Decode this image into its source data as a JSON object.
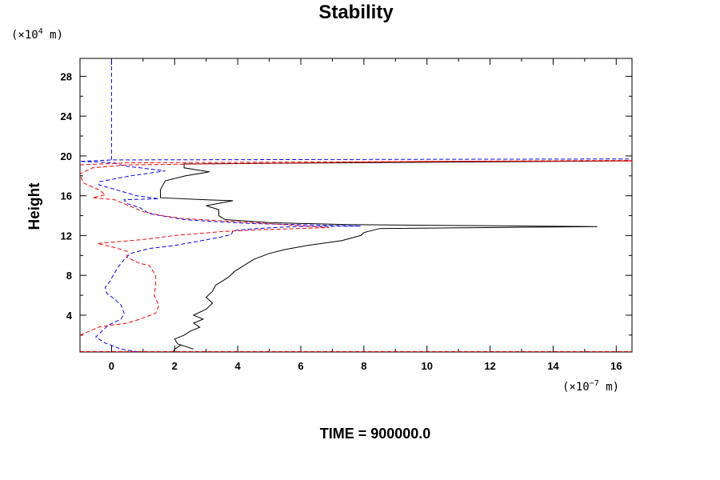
{
  "chart_data": {
    "type": "line",
    "title": "Stability",
    "xlabel": "",
    "ylabel": "Height",
    "x_unit": {
      "prefix": "(×10",
      "exponent": "−7",
      "suffix": " m)"
    },
    "y_unit": {
      "prefix": "(×10",
      "exponent": "4",
      "suffix": " m)"
    },
    "xlim": [
      -1,
      16.5
    ],
    "ylim": [
      0.3,
      29.8
    ],
    "x_ticks": [
      0,
      2,
      4,
      6,
      8,
      10,
      12,
      14,
      16
    ],
    "y_ticks": [
      4,
      8,
      12,
      16,
      20,
      24,
      28
    ],
    "grid": false,
    "footer": "TIME = 900000.0",
    "series": [
      {
        "color": "#000000",
        "dash": "solid",
        "points": [
          [
            1.95,
            0.3
          ],
          [
            2.0,
            0.6
          ],
          [
            2.2,
            1.0
          ],
          [
            2.6,
            0.6
          ],
          [
            2.1,
            1.1
          ],
          [
            2.0,
            1.6
          ],
          [
            2.3,
            2.0
          ],
          [
            2.5,
            2.4
          ],
          [
            2.8,
            2.8
          ],
          [
            2.6,
            3.2
          ],
          [
            2.9,
            3.6
          ],
          [
            2.6,
            4.0
          ],
          [
            3.0,
            4.6
          ],
          [
            3.2,
            5.2
          ],
          [
            3.0,
            5.8
          ],
          [
            3.2,
            6.4
          ],
          [
            3.3,
            7.0
          ],
          [
            3.7,
            7.8
          ],
          [
            3.9,
            8.4
          ],
          [
            4.2,
            9.0
          ],
          [
            4.5,
            9.6
          ],
          [
            5.0,
            10.2
          ],
          [
            5.5,
            10.6
          ],
          [
            6.2,
            11.0
          ],
          [
            7.3,
            11.5
          ],
          [
            7.9,
            12.0
          ],
          [
            8.0,
            12.3
          ],
          [
            8.5,
            12.7
          ],
          [
            15.4,
            12.9
          ],
          [
            7.5,
            13.1
          ],
          [
            5.0,
            13.3
          ],
          [
            3.6,
            13.6
          ],
          [
            3.4,
            14.0
          ],
          [
            3.4,
            14.6
          ],
          [
            3.0,
            15.0
          ],
          [
            3.85,
            15.5
          ],
          [
            3.0,
            15.6
          ],
          [
            1.55,
            15.8
          ],
          [
            1.55,
            16.6
          ],
          [
            1.7,
            17.5
          ],
          [
            2.35,
            18.0
          ],
          [
            3.1,
            18.4
          ],
          [
            2.3,
            18.8
          ],
          [
            2.3,
            19.2
          ],
          [
            16.5,
            19.5
          ]
        ]
      },
      {
        "color": "#0000ff",
        "dash": "dashed",
        "points": [
          [
            0.85,
            0.3
          ],
          [
            0.3,
            0.6
          ],
          [
            -0.2,
            1.2
          ],
          [
            -0.5,
            1.8
          ],
          [
            -0.3,
            2.4
          ],
          [
            -0.1,
            3.0
          ],
          [
            0.3,
            3.6
          ],
          [
            0.4,
            4.2
          ],
          [
            0.3,
            5.0
          ],
          [
            0.1,
            5.6
          ],
          [
            -0.15,
            6.2
          ],
          [
            -0.2,
            6.8
          ],
          [
            -0.05,
            7.4
          ],
          [
            0.05,
            8.0
          ],
          [
            0.2,
            8.8
          ],
          [
            0.4,
            9.6
          ],
          [
            0.6,
            10.2
          ],
          [
            1.2,
            10.7
          ],
          [
            2.0,
            11.0
          ],
          [
            2.7,
            11.4
          ],
          [
            3.4,
            11.8
          ],
          [
            3.8,
            12.1
          ],
          [
            3.85,
            12.5
          ],
          [
            4.6,
            12.7
          ],
          [
            5.8,
            12.9
          ],
          [
            7.9,
            12.95
          ],
          [
            4.5,
            13.2
          ],
          [
            3.3,
            13.4
          ],
          [
            2.3,
            13.6
          ],
          [
            1.2,
            14.2
          ],
          [
            0.9,
            14.8
          ],
          [
            0.5,
            15.2
          ],
          [
            0.4,
            15.6
          ],
          [
            1.5,
            15.7
          ],
          [
            0.8,
            16.0
          ],
          [
            -0.4,
            17.1
          ],
          [
            -0.4,
            17.4
          ],
          [
            0.6,
            18.0
          ],
          [
            1.7,
            18.5
          ],
          [
            0.4,
            19.0
          ],
          [
            0.1,
            19.3
          ],
          [
            -0.5,
            19.4
          ],
          [
            -1.0,
            19.45
          ],
          [
            0.05,
            19.6
          ],
          [
            16.5,
            19.7
          ]
        ]
      },
      {
        "color": "#0000ff",
        "dash": "dashed",
        "points": [
          [
            0.0,
            19.6
          ],
          [
            0.0,
            29.8
          ]
        ]
      },
      {
        "color": "#ff0000",
        "dash": "dashed",
        "points": [
          [
            -1.0,
            0.35
          ],
          [
            16.5,
            0.35
          ]
        ]
      },
      {
        "color": "#ff0000",
        "dash": "dashed",
        "points": [
          [
            -1.0,
            2.0
          ],
          [
            -0.4,
            2.8
          ],
          [
            0.0,
            3.0
          ],
          [
            0.5,
            3.2
          ],
          [
            0.9,
            3.6
          ],
          [
            1.4,
            4.2
          ],
          [
            1.5,
            5.0
          ],
          [
            1.35,
            6.0
          ],
          [
            1.4,
            7.0
          ],
          [
            1.4,
            8.0
          ],
          [
            1.2,
            9.0
          ],
          [
            0.9,
            9.2
          ],
          [
            0.5,
            9.8
          ],
          [
            0.5,
            10.4
          ],
          [
            0.1,
            10.8
          ],
          [
            -0.45,
            11.2
          ],
          [
            1.0,
            11.6
          ],
          [
            2.0,
            12.0
          ],
          [
            3.5,
            12.4
          ],
          [
            4.8,
            12.6
          ],
          [
            6.9,
            12.8
          ],
          [
            4.5,
            13.3
          ],
          [
            2.3,
            13.7
          ],
          [
            1.6,
            14.0
          ],
          [
            1.0,
            14.4
          ],
          [
            0.1,
            15.6
          ],
          [
            -0.6,
            15.8
          ],
          [
            -0.2,
            16.1
          ],
          [
            -0.4,
            16.6
          ],
          [
            -0.9,
            17.3
          ],
          [
            -1.0,
            18.2
          ],
          [
            -0.6,
            18.8
          ],
          [
            0.5,
            19.1
          ],
          [
            10.0,
            19.45
          ],
          [
            16.5,
            19.5
          ]
        ]
      },
      {
        "color": "#ff0000",
        "dash": "dashed",
        "points": [
          [
            -1.0,
            19.1
          ],
          [
            0.5,
            19.3
          ],
          [
            16.5,
            19.55
          ]
        ]
      }
    ]
  }
}
